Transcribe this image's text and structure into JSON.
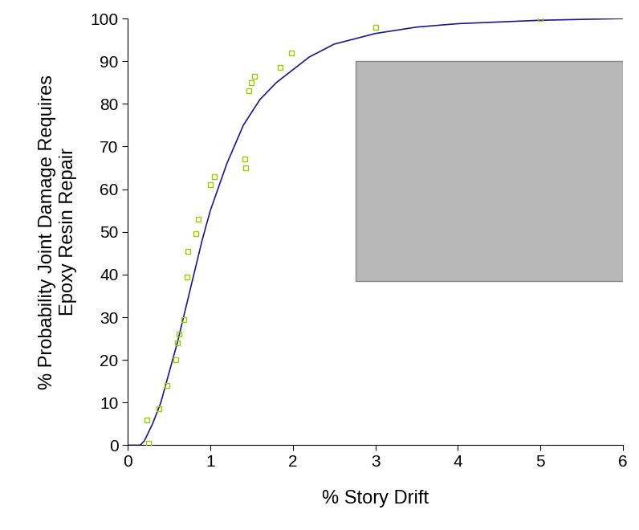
{
  "chart_data": {
    "type": "line",
    "x_label": "% Story Drift",
    "y_label": "% Probability Joint Damage Requires\nEpoxy Resin Repair",
    "xlim": [
      0,
      6
    ],
    "xticks": [
      0,
      1,
      2,
      3,
      4,
      5,
      6
    ],
    "ylim": [
      0,
      100
    ],
    "yticks": [
      0,
      10,
      20,
      30,
      40,
      50,
      60,
      70,
      80,
      90,
      100
    ],
    "grid": false,
    "series": [
      {
        "type": "line",
        "color": "#1a1a8c",
        "line_style": "solid",
        "x": [
          0,
          0.15,
          0.2,
          0.3,
          0.4,
          0.5,
          0.6,
          0.7,
          0.8,
          0.9,
          1.0,
          1.2,
          1.4,
          1.6,
          1.8,
          2.0,
          2.2,
          2.5,
          3.0,
          3.5,
          4.0,
          5.0,
          6.0
        ],
        "values": [
          0,
          0,
          1,
          5,
          10,
          17,
          24,
          32,
          40,
          48,
          55,
          66,
          75,
          81,
          85,
          88,
          91,
          94,
          96.5,
          98,
          98.8,
          99.6,
          100
        ]
      },
      {
        "type": "scatter",
        "color": "#99cc00",
        "marker": "square",
        "x": [
          0.23,
          0.25,
          0.38,
          0.47,
          0.58,
          0.6,
          0.62,
          0.68,
          0.72,
          0.73,
          0.82,
          0.85,
          1.0,
          1.05,
          1.42,
          1.43,
          1.47,
          1.5,
          1.53,
          1.85,
          1.98,
          3.0,
          5.0
        ],
        "values": [
          6,
          0.5,
          8.5,
          14,
          20,
          24,
          26,
          29.5,
          39.5,
          45.5,
          49.5,
          53,
          61,
          63,
          67,
          65,
          83,
          85,
          86.5,
          88.5,
          92,
          98,
          100
        ]
      }
    ]
  }
}
